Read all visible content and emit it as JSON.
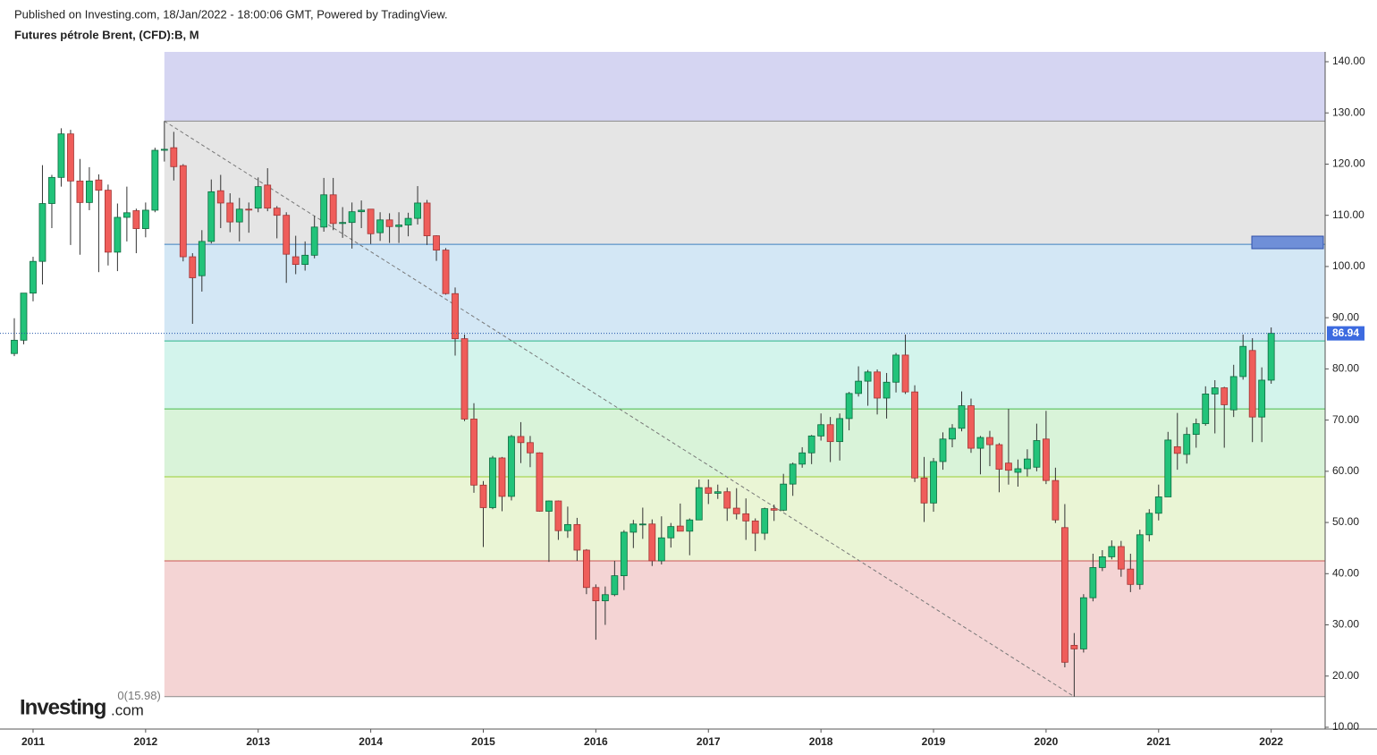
{
  "chart_data": {
    "type": "candlestick",
    "published": "Published on Investing.com, 18/Jan/2022 - 18:00:06 GMT, Powered by TradingView.",
    "title": "Futures pétrole Brent, (CFD):B, M",
    "logo": {
      "name": "Investing",
      "suffix": ".com"
    },
    "categories": [
      null,
      null,
      "2011",
      null,
      null,
      null,
      null,
      null,
      null,
      null,
      null,
      null,
      null,
      null,
      "2012",
      null,
      null,
      null,
      null,
      null,
      null,
      null,
      null,
      null,
      null,
      null,
      "2013",
      null,
      null,
      null,
      null,
      null,
      null,
      null,
      null,
      null,
      null,
      null,
      "2014",
      null,
      null,
      null,
      null,
      null,
      null,
      null,
      null,
      null,
      null,
      null,
      "2015",
      null,
      null,
      null,
      null,
      null,
      null,
      null,
      null,
      null,
      null,
      null,
      "2016",
      null,
      null,
      null,
      null,
      null,
      null,
      null,
      null,
      null,
      null,
      null,
      "2017",
      null,
      null,
      null,
      null,
      null,
      null,
      null,
      null,
      null,
      null,
      null,
      "2018",
      null,
      null,
      null,
      null,
      null,
      null,
      null,
      null,
      null,
      null,
      null,
      "2019",
      null,
      null,
      null,
      null,
      null,
      null,
      null,
      null,
      null,
      null,
      null,
      "2020",
      null,
      null,
      null,
      null,
      null,
      null,
      null,
      null,
      null,
      null,
      null,
      "2021",
      null,
      null,
      null,
      null,
      null,
      null,
      null,
      null,
      null,
      null,
      null,
      "2022"
    ],
    "open": [
      83.0,
      85.6,
      94.8,
      101.0,
      112.3,
      117.4,
      125.9,
      116.7,
      112.5,
      116.9,
      114.9,
      102.8,
      109.6,
      110.9,
      107.4,
      111.0,
      122.7,
      123.2,
      119.7,
      101.9,
      98.2,
      104.9,
      114.8,
      112.4,
      108.7,
      111.2,
      111.4,
      115.9,
      111.4,
      110.0,
      101.9,
      100.4,
      102.2,
      107.7,
      114.0,
      108.4,
      108.6,
      110.7,
      111.2,
      106.6,
      109.1,
      107.8,
      108.1,
      109.4,
      112.4,
      106.0,
      103.2,
      94.7,
      85.9,
      70.2,
      57.3,
      52.9,
      62.6,
      55.1,
      66.8,
      65.6,
      63.6,
      52.2,
      54.2,
      48.4,
      49.6,
      44.6,
      37.3,
      34.7,
      35.9,
      39.6,
      48.1,
      49.7,
      49.7,
      42.5,
      47.0,
      49.3,
      48.3,
      50.5,
      56.8,
      55.7,
      56.0,
      52.8,
      51.7,
      50.3,
      47.9,
      52.7,
      52.4,
      57.5,
      61.4,
      63.6,
      66.9,
      69.1,
      65.8,
      70.3,
      75.2,
      77.6,
      79.4,
      74.3,
      77.4,
      82.7,
      75.5,
      58.7,
      53.8,
      61.9,
      66.3,
      68.4,
      72.8,
      64.5,
      66.6,
      65.2,
      61.6,
      59.8,
      60.5,
      60.8,
      66.3,
      58.2,
      49.0,
      26.0,
      25.3,
      35.3,
      41.2,
      43.3,
      45.3,
      40.9,
      37.9,
      47.6,
      51.8,
      55.0,
      64.8,
      63.3,
      67.2,
      69.3,
      75.1,
      76.3,
      72.0,
      78.5,
      83.6,
      70.6,
      77.8
    ],
    "high": [
      89.9,
      94.8,
      101.9,
      119.8,
      117.9,
      127.0,
      126.7,
      121.0,
      119.4,
      118.0,
      116.0,
      112.3,
      115.6,
      111.3,
      112.5,
      123.2,
      128.4,
      126.3,
      120.0,
      102.6,
      107.1,
      117.0,
      117.9,
      114.3,
      113.4,
      112.5,
      117.4,
      119.2,
      111.8,
      110.6,
      106.0,
      104.9,
      109.9,
      117.3,
      117.3,
      111.6,
      112.5,
      112.9,
      111.0,
      110.6,
      110.4,
      110.6,
      110.5,
      115.7,
      113.0,
      106.1,
      103.6,
      95.9,
      86.7,
      73.3,
      58.1,
      63.0,
      62.8,
      67.1,
      69.6,
      66.9,
      63.7,
      54.3,
      54.3,
      53.1,
      50.9,
      44.8,
      37.9,
      37.5,
      42.5,
      48.5,
      50.5,
      52.9,
      50.6,
      51.2,
      49.9,
      53.7,
      50.8,
      58.4,
      58.4,
      57.4,
      56.8,
      56.7,
      54.7,
      50.8,
      52.9,
      53.5,
      59.5,
      61.7,
      64.7,
      67.1,
      71.3,
      70.6,
      71.3,
      75.5,
      80.5,
      79.8,
      79.9,
      79.2,
      83.1,
      86.7,
      76.8,
      62.8,
      62.6,
      67.6,
      69.2,
      75.6,
      74.2,
      66.9,
      67.9,
      65.5,
      72.2,
      62.3,
      64.3,
      69.3,
      71.8,
      60.7,
      53.6,
      28.4,
      36.0,
      43.9,
      44.6,
      46.5,
      46.4,
      43.9,
      48.6,
      52.6,
      57.4,
      67.7,
      71.4,
      68.6,
      70.3,
      76.6,
      77.8,
      76.5,
      80.8,
      86.7,
      86.0,
      80.3,
      88.1
    ],
    "low": [
      82.5,
      84.8,
      93.2,
      96.5,
      107.5,
      115.6,
      104.2,
      102.3,
      111.0,
      98.9,
      100.2,
      99.1,
      104.9,
      102.6,
      105.7,
      110.6,
      120.5,
      116.8,
      101.0,
      88.8,
      95.1,
      104.5,
      107.5,
      106.7,
      104.9,
      106.6,
      110.6,
      110.8,
      105.5,
      96.8,
      98.5,
      99.2,
      101.6,
      106.8,
      107.1,
      105.6,
      103.5,
      107.5,
      104.4,
      105.0,
      104.6,
      104.6,
      105.9,
      108.2,
      104.2,
      101.1,
      94.5,
      82.6,
      69.8,
      55.8,
      45.2,
      52.6,
      52.2,
      54.3,
      61.6,
      60.8,
      52.1,
      42.3,
      46.6,
      47.0,
      42.5,
      36.0,
      27.1,
      30.0,
      35.6,
      36.8,
      45.0,
      46.8,
      41.5,
      41.8,
      45.1,
      48.4,
      43.6,
      50.8,
      53.6,
      54.6,
      50.3,
      50.6,
      46.6,
      44.4,
      46.6,
      50.3,
      52.2,
      55.2,
      60.7,
      61.4,
      66.0,
      61.8,
      62.1,
      68.0,
      74.6,
      72.8,
      71.1,
      70.3,
      75.4,
      75.1,
      57.9,
      50.1,
      52.1,
      60.3,
      64.7,
      67.8,
      63.6,
      59.4,
      61.0,
      55.9,
      57.4,
      57.0,
      59.0,
      60.0,
      57.5,
      49.9,
      21.7,
      15.98,
      24.6,
      34.6,
      40.5,
      42.8,
      39.4,
      36.4,
      36.9,
      46.3,
      50.4,
      55.0,
      60.3,
      61.5,
      64.6,
      68.9,
      67.4,
      64.6,
      70.6,
      77.9,
      65.7,
      65.7,
      77.1
    ],
    "close": [
      85.6,
      94.8,
      101.0,
      112.3,
      117.4,
      125.9,
      116.7,
      112.5,
      116.7,
      114.9,
      102.8,
      109.6,
      110.5,
      107.4,
      111.0,
      122.7,
      122.9,
      119.5,
      101.9,
      97.8,
      104.9,
      114.6,
      112.4,
      108.7,
      111.2,
      111.1,
      115.6,
      111.4,
      110.0,
      102.4,
      100.4,
      102.2,
      107.7,
      114.0,
      108.4,
      108.6,
      110.7,
      111.0,
      106.4,
      109.1,
      107.8,
      108.1,
      109.4,
      112.4,
      106.0,
      103.2,
      94.7,
      85.9,
      70.2,
      57.3,
      52.9,
      62.6,
      55.1,
      66.8,
      65.6,
      63.6,
      52.2,
      54.2,
      48.4,
      49.6,
      44.6,
      37.3,
      34.7,
      35.9,
      39.6,
      48.1,
      49.7,
      49.7,
      42.5,
      47.0,
      49.2,
      48.3,
      50.5,
      56.8,
      55.7,
      56.0,
      52.8,
      51.7,
      50.3,
      47.9,
      52.7,
      52.4,
      57.5,
      61.4,
      63.6,
      66.9,
      69.1,
      65.8,
      70.3,
      75.2,
      77.6,
      79.4,
      74.3,
      77.4,
      82.7,
      75.5,
      58.7,
      53.8,
      61.9,
      66.3,
      68.4,
      72.8,
      64.5,
      66.6,
      65.2,
      60.4,
      60.2,
      60.5,
      62.4,
      66.0,
      58.2,
      50.5,
      22.7,
      25.3,
      35.3,
      41.2,
      43.3,
      45.3,
      40.9,
      37.9,
      47.6,
      51.8,
      55.0,
      66.1,
      63.5,
      67.2,
      69.3,
      75.1,
      76.3,
      73.0,
      78.5,
      84.4,
      70.6,
      77.8,
      86.94
    ],
    "up_color": "#22c37a",
    "down_color": "#ef5d5a",
    "ylim": [
      9.65,
      141.92
    ],
    "yticks": [
      {
        "value": 10,
        "label": "10.00"
      },
      {
        "value": 20,
        "label": "20.00"
      },
      {
        "value": 30,
        "label": "30.00"
      },
      {
        "value": 40,
        "label": "40.00"
      },
      {
        "value": 50,
        "label": "50.00"
      },
      {
        "value": 60,
        "label": "60.00"
      },
      {
        "value": 70,
        "label": "70.00"
      },
      {
        "value": 80,
        "label": "80.00"
      },
      {
        "value": 90,
        "label": "90.00"
      },
      {
        "value": 100,
        "label": "100.00"
      },
      {
        "value": 110,
        "label": "110.00"
      },
      {
        "value": 120,
        "label": "120.00"
      },
      {
        "value": 130,
        "label": "130.00"
      },
      {
        "value": 140,
        "label": "140.00"
      }
    ],
    "last_price": 86.94,
    "fib": {
      "label": "0(15.98)",
      "levels": [
        15.98,
        42.51,
        58.93,
        72.19,
        85.46,
        104.34,
        128.4
      ],
      "line_colors": [
        "#8a8a8a",
        "#cc5555",
        "#9acd32",
        "#4cbb4c",
        "#2bb58a",
        "#3f7fbf",
        "#8a8a8a"
      ],
      "fills": [
        "#f4d4d4",
        "#eaf5d5",
        "#d9f3d9",
        "#d3f4ec",
        "#d3e7f5",
        "#e5e5e5",
        "#d5d5f2"
      ]
    }
  }
}
